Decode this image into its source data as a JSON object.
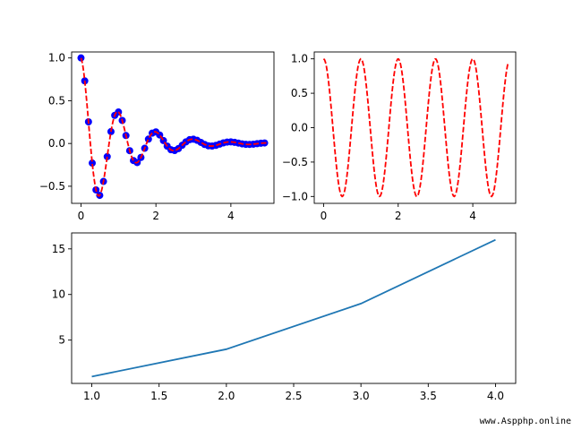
{
  "watermark": "www.Aspphp.online",
  "colors": {
    "dashed": "#ff0000",
    "marker": "#0000ff",
    "line": "#1f77b4"
  },
  "chart_data": [
    {
      "type": "line",
      "title": "",
      "xlabel": "",
      "ylabel": "",
      "xlim": [
        -0.25,
        5.15
      ],
      "ylim": [
        -0.7,
        1.07
      ],
      "xticks": [
        0,
        2,
        4
      ],
      "yticks": [
        -0.5,
        0.0,
        0.5,
        1.0
      ],
      "xtick_labels": [
        "0",
        "2",
        "4"
      ],
      "ytick_labels": [
        "−0.5",
        "0.0",
        "0.5",
        "1.0"
      ],
      "grid": false,
      "series": [
        {
          "style": "dashed",
          "color": "#ff0000",
          "function": "exp(-x)*cos(2*pi*x)",
          "x_range": [
            0,
            5
          ],
          "sample_count": 201
        },
        {
          "style": "markers",
          "color": "#0000ff",
          "function": "exp(-x)*cos(2*pi*x)",
          "x": [
            0.0,
            0.1,
            0.2,
            0.3,
            0.4,
            0.5,
            0.6,
            0.7,
            0.8,
            0.9,
            1.0,
            1.1,
            1.2,
            1.3,
            1.4,
            1.5,
            1.6,
            1.7,
            1.8,
            1.9,
            2.0,
            2.1,
            2.2,
            2.3,
            2.4,
            2.5,
            2.6,
            2.7,
            2.8,
            2.9,
            3.0,
            3.1,
            3.2,
            3.3,
            3.4,
            3.5,
            3.6,
            3.7,
            3.8,
            3.9,
            4.0,
            4.1,
            4.2,
            4.3,
            4.4,
            4.5,
            4.6,
            4.7,
            4.8,
            4.9
          ]
        }
      ]
    },
    {
      "type": "line",
      "title": "",
      "xlabel": "",
      "ylabel": "",
      "xlim": [
        -0.25,
        5.15
      ],
      "ylim": [
        -1.1,
        1.1
      ],
      "xticks": [
        0,
        2,
        4
      ],
      "yticks": [
        -1.0,
        -0.5,
        0.0,
        0.5,
        1.0
      ],
      "xtick_labels": [
        "0",
        "2",
        "4"
      ],
      "ytick_labels": [
        "−1.0",
        "−0.5",
        "0.0",
        "0.5",
        "1.0"
      ],
      "grid": false,
      "series": [
        {
          "style": "dashed",
          "color": "#ff0000",
          "function": "cos(2*pi*x)",
          "x_range": [
            0,
            4.95
          ],
          "sample_count": 200
        }
      ]
    },
    {
      "type": "line",
      "title": "",
      "xlabel": "",
      "ylabel": "",
      "xlim": [
        0.85,
        4.15
      ],
      "ylim": [
        0.25,
        16.75
      ],
      "xticks": [
        1.0,
        1.5,
        2.0,
        2.5,
        3.0,
        3.5,
        4.0
      ],
      "yticks": [
        5,
        10,
        15
      ],
      "xtick_labels": [
        "1.0",
        "1.5",
        "2.0",
        "2.5",
        "3.0",
        "3.5",
        "4.0"
      ],
      "ytick_labels": [
        "5",
        "10",
        "15"
      ],
      "grid": false,
      "series": [
        {
          "style": "solid",
          "color": "#1f77b4",
          "x": [
            1,
            2,
            3,
            4
          ],
          "y": [
            1,
            4,
            9,
            16
          ]
        }
      ]
    }
  ]
}
